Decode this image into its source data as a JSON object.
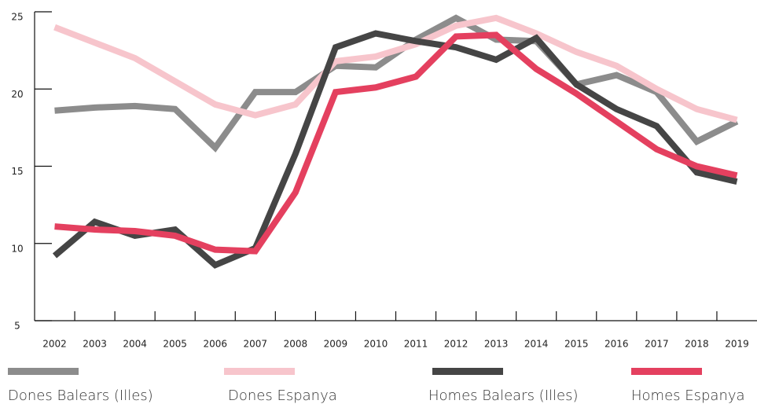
{
  "chart_data": {
    "type": "line",
    "x": [
      2002,
      2003,
      2004,
      2005,
      2006,
      2007,
      2008,
      2009,
      2010,
      2011,
      2012,
      2013,
      2014,
      2015,
      2016,
      2017,
      2018,
      2019
    ],
    "xlim": [
      2001.5,
      2019.5
    ],
    "ylim": [
      5,
      25
    ],
    "yticks": [
      5,
      10,
      15,
      20,
      25
    ],
    "series": [
      {
        "name": "Dones Balears (Illes)",
        "color": "#8c8c8c",
        "values": [
          18.6,
          18.8,
          18.9,
          18.7,
          16.2,
          19.8,
          19.8,
          21.5,
          21.4,
          23.2,
          24.6,
          23.2,
          23.1,
          20.3,
          20.9,
          19.8,
          16.6,
          17.9
        ]
      },
      {
        "name": "Dones Espanya",
        "color": "#f7c5cc",
        "values": [
          24.0,
          23.0,
          22.0,
          20.5,
          19.0,
          18.3,
          19.0,
          21.8,
          22.1,
          22.9,
          24.1,
          24.6,
          23.6,
          22.4,
          21.5,
          20.0,
          18.7,
          18.0
        ]
      },
      {
        "name": "Homes Balears (Illes)",
        "color": "#454545",
        "values": [
          9.2,
          11.4,
          10.5,
          10.9,
          8.6,
          9.7,
          15.8,
          22.7,
          23.6,
          23.1,
          22.7,
          21.9,
          23.3,
          20.3,
          18.7,
          17.6,
          14.6,
          14.0
        ]
      },
      {
        "name": "Homes Espanya",
        "color": "#e4405f",
        "values": [
          11.1,
          10.9,
          10.8,
          10.5,
          9.6,
          9.5,
          13.3,
          19.8,
          20.1,
          20.8,
          23.4,
          23.5,
          21.3,
          19.7,
          17.9,
          16.1,
          15.0,
          14.4
        ]
      }
    ]
  }
}
